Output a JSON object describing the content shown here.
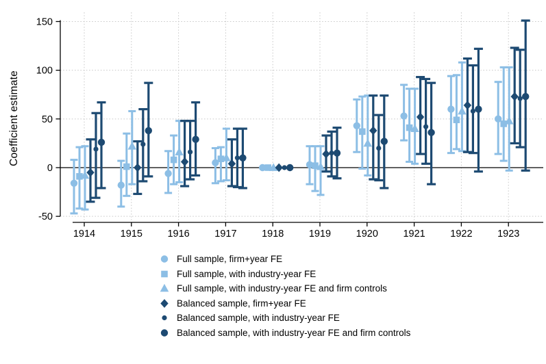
{
  "page": {
    "background": "#ffffff"
  },
  "chart_data": {
    "type": "scatter",
    "subtype": "coefficient-errorbar-plot",
    "title": "",
    "xlabel": "",
    "ylabel": "Coefficient estimate",
    "ylim": [
      -62,
      157
    ],
    "yticks": [
      -50,
      0,
      50,
      100,
      150
    ],
    "reference_line": 0,
    "grid": "dotted",
    "legend_position": "bottom-center",
    "colors": {
      "full_sample_light_blue": "#8CBEE5",
      "balanced_sample_dark_blue": "#1D4A72",
      "gridline": "#c9c9c9",
      "axis": "#000000"
    },
    "categories": [
      "1914",
      "1915",
      "1916",
      "1917",
      "1918",
      "1919",
      "1920",
      "1921",
      "1922",
      "1923"
    ],
    "series": [
      {
        "name": "Full sample, firm+year FE",
        "marker": "circle",
        "group": "full",
        "color": "#8CBEE5",
        "estimates": [
          -16,
          -18,
          -6,
          5,
          0,
          3,
          43,
          53,
          60,
          50
        ],
        "ci_low": [
          -47,
          -40,
          -26,
          -16,
          0,
          -17,
          16,
          28,
          15,
          14
        ],
        "ci_high": [
          8,
          7,
          17,
          20,
          0,
          22,
          70,
          85,
          94,
          88
        ]
      },
      {
        "name": "Full sample, with industry-year FE",
        "marker": "square",
        "group": "full",
        "color": "#8CBEE5",
        "estimates": [
          -9,
          1,
          8,
          9,
          0,
          2,
          37,
          41,
          49,
          45
        ],
        "ci_low": [
          -42,
          -29,
          -17,
          -14,
          0,
          -24,
          -1,
          6,
          19,
          7
        ],
        "ci_high": [
          21,
          35,
          33,
          21,
          0,
          22,
          73,
          81,
          95,
          103
        ]
      },
      {
        "name": "Full sample, with industry-year FE and firm controls",
        "marker": "triangle",
        "group": "full",
        "color": "#8CBEE5",
        "estimates": [
          -8,
          22,
          16,
          10,
          0,
          1,
          25,
          40,
          58,
          48
        ],
        "ci_low": [
          -43,
          -17,
          -15,
          -13,
          0,
          -28,
          -8,
          4,
          17,
          -3
        ],
        "ci_high": [
          22,
          58,
          48,
          40,
          0,
          22,
          74,
          81,
          108,
          103
        ]
      },
      {
        "name": "Balanced sample, firm+year FE",
        "marker": "diamond",
        "group": "balanced",
        "color": "#1D4A72",
        "estimates": [
          -5,
          0,
          6,
          4,
          0,
          14,
          38,
          52,
          64,
          73
        ],
        "ci_low": [
          -35,
          -27,
          -19,
          -19,
          0,
          -4,
          -12,
          14,
          16,
          25
        ],
        "ci_high": [
          29,
          27,
          48,
          29,
          0,
          33,
          74,
          93,
          112,
          123
        ]
      },
      {
        "name": "Balanced sample,  with industry-year FE",
        "marker": "circle-small",
        "group": "balanced",
        "color": "#1D4A72",
        "estimates": [
          19,
          24,
          16,
          10,
          0,
          15,
          20,
          42,
          58,
          71
        ],
        "ci_low": [
          -31,
          -14,
          -12,
          -20,
          0,
          -9,
          -13,
          4,
          15,
          21
        ],
        "ci_high": [
          56,
          60,
          48,
          40,
          0,
          37,
          54,
          91,
          105,
          121
        ]
      },
      {
        "name": "Balanced sample,  with industry-year FE and firm controls",
        "marker": "circle",
        "group": "balanced",
        "color": "#1D4A72",
        "estimates": [
          26,
          38,
          29,
          10,
          0,
          15,
          27,
          36,
          60,
          73
        ],
        "ci_low": [
          -21,
          -9,
          -8,
          -21,
          0,
          -11,
          -21,
          -17,
          -4,
          -3
        ],
        "ci_high": [
          67,
          87,
          67,
          40,
          0,
          41,
          74,
          87,
          122,
          151
        ]
      }
    ]
  }
}
